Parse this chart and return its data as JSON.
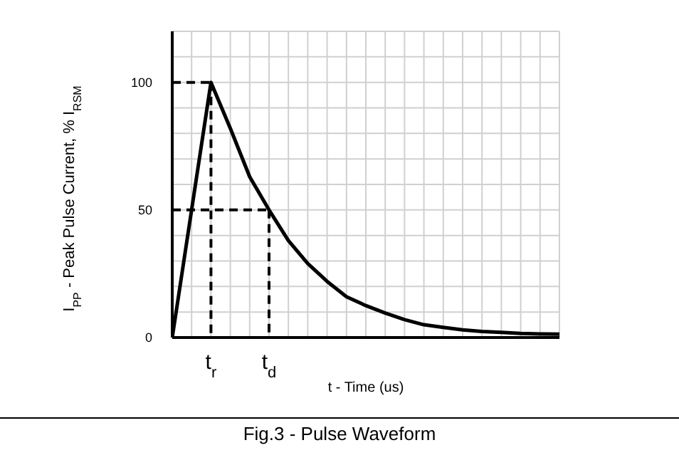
{
  "chart_data": {
    "type": "line",
    "title": "Fig.3 - Pulse Waveform",
    "xlabel": "t - Time (us)",
    "ylabel": "I$_{PP}$ - Peak Pulse Current, % I$_{RSM}$",
    "ylim": [
      0,
      120
    ],
    "categories": [
      null,
      null,
      "t$_{r}$",
      null,
      null,
      "t$_{d}$",
      null,
      null,
      null,
      null,
      null,
      null,
      null,
      null,
      null,
      null,
      null,
      null,
      null,
      null,
      null
    ],
    "yticks": [
      0,
      {
        "value": 10,
        "label": null
      },
      {
        "value": 20,
        "label": null
      },
      {
        "value": 30,
        "label": null
      },
      {
        "value": 40,
        "label": null
      },
      50,
      {
        "value": 60,
        "label": null
      },
      {
        "value": 70,
        "label": null
      },
      {
        "value": 80,
        "label": null
      },
      {
        "value": 90,
        "label": null
      },
      100,
      {
        "value": 110,
        "label": null
      },
      {
        "value": 120,
        "label": null
      }
    ],
    "grid": true,
    "marker": "none",
    "line_style": "solid",
    "series": [
      {
        "color": "#000000",
        "values": [
          0,
          50,
          100,
          82,
          63,
          50,
          38,
          29,
          22,
          16,
          12.5,
          9.6,
          7,
          5,
          4,
          3,
          2.4,
          2,
          1.6,
          1.4,
          1.3
        ]
      },
      {
        "color": "#000000",
        "line_style": "dashed",
        "values": [
          100,
          100,
          100,
          null,
          null,
          null,
          null,
          null,
          null,
          null,
          null,
          null,
          null,
          null,
          null,
          null,
          null,
          null,
          null,
          null,
          null
        ]
      },
      {
        "color": "#000000",
        "line_style": "dashed",
        "x": [
          "t$_{r}$",
          "t$_{r}$"
        ],
        "values": [
          100,
          0
        ]
      },
      {
        "color": "#000000",
        "line_style": "dashed",
        "values": [
          50,
          50,
          50,
          50,
          50,
          50,
          null,
          null,
          null,
          null,
          null,
          null,
          null,
          null,
          null,
          null,
          null,
          null,
          null,
          null,
          null
        ]
      },
      {
        "color": "#000000",
        "line_style": "dashed",
        "x": [
          "t$_{d}$",
          "t$_{d}$"
        ],
        "values": [
          50,
          0
        ]
      }
    ]
  }
}
